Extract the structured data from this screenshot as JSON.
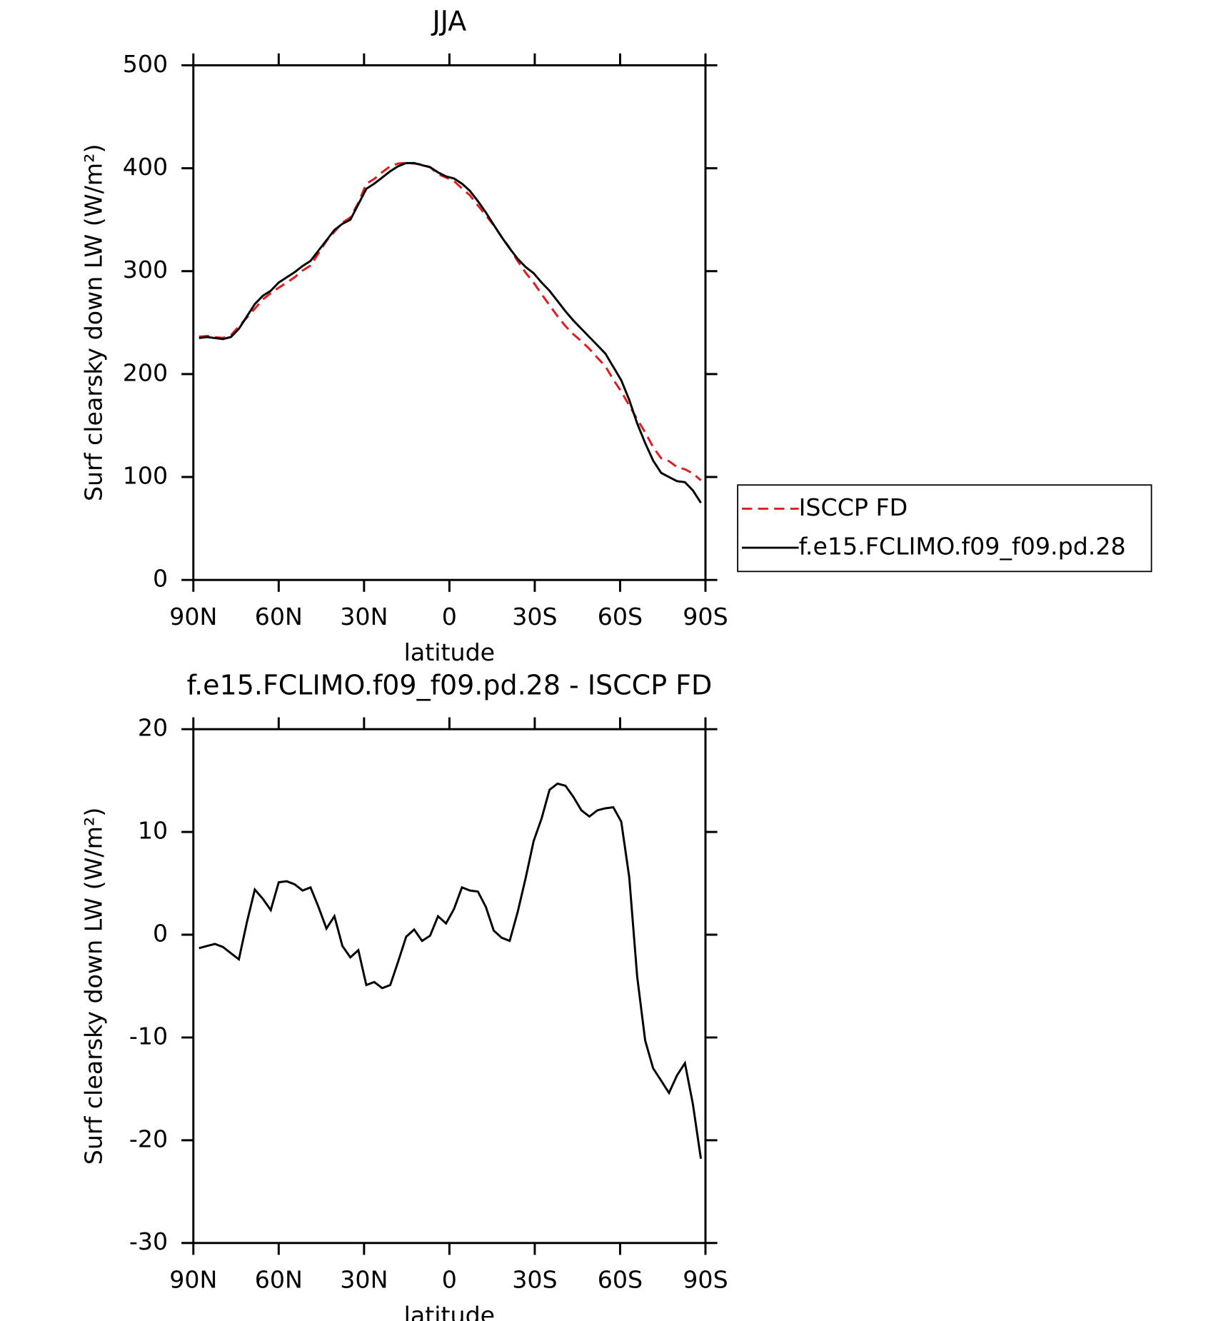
{
  "chart_data": [
    {
      "type": "line",
      "title": "JJA",
      "xlabel": "latitude",
      "ylabel": "Surf clearsky down LW (W/m²)",
      "xlim": [
        90,
        -90
      ],
      "xticks": [
        {
          "value": 90,
          "label": "90N"
        },
        {
          "value": 60,
          "label": "60N"
        },
        {
          "value": 30,
          "label": "30N"
        },
        0,
        {
          "value": -30,
          "label": "30S"
        },
        {
          "value": -60,
          "label": "60S"
        },
        {
          "value": -90,
          "label": "90S"
        }
      ],
      "ylim": [
        0,
        500
      ],
      "yticks": [
        0,
        100,
        200,
        300,
        400,
        500
      ],
      "legend": "right",
      "x": [
        88,
        85.2,
        82.4,
        79.6,
        76.8,
        74,
        71.2,
        68.4,
        65.6,
        62.8,
        60,
        57.2,
        54.4,
        51.6,
        48.8,
        46,
        43.2,
        40.4,
        37.6,
        34.8,
        32,
        29.2,
        26.4,
        23.6,
        20.8,
        18,
        15.2,
        12.4,
        9.6,
        6.8,
        4,
        1.2,
        -1.6,
        -4.4,
        -7.2,
        -10,
        -12.8,
        -15.6,
        -18.4,
        -21.2,
        -24,
        -26.8,
        -29.6,
        -32.4,
        -35.2,
        -38,
        -40.8,
        -43.6,
        -46.4,
        -49.2,
        -52,
        -54.8,
        -57.6,
        -60.4,
        -63.2,
        -66,
        -68.8,
        -71.6,
        -74.4,
        -77.2,
        -80,
        -82.8,
        -85.6,
        -88.4
      ],
      "series": [
        {
          "name": "ISCCP FD",
          "color": "#e41a1c",
          "dash": true,
          "values": [
            236.3,
            237.1,
            235.9,
            235.2,
            237.8,
            246.4,
            254.8,
            263.6,
            272.5,
            278.6,
            283.9,
            288.8,
            294.1,
            300.7,
            305.4,
            317.3,
            329.4,
            338.2,
            347.1,
            352.2,
            366.5,
            384.9,
            389.6,
            396.2,
            401.9,
            404.6,
            405.2,
            404.5,
            403.6,
            401.1,
            394.2,
            390.9,
            387.5,
            380.4,
            373.7,
            363.8,
            354.3,
            344.6,
            333.3,
            322.6,
            309.8,
            298.5,
            288.9,
            277.7,
            266.9,
            256.3,
            246.5,
            238.6,
            231.9,
            224.5,
            215.9,
            207.7,
            194.6,
            183.0,
            169.4,
            156.1,
            143.3,
            129.0,
            118.2,
            115.4,
            109.7,
            107.5,
            103.5,
            96.8
          ]
        },
        {
          "name": "f.e15.FCLIMO.f09_f09.pd.28",
          "color": "#000000",
          "dash": false,
          "values": [
            235,
            236,
            235,
            234,
            236,
            244,
            256,
            268,
            276,
            281,
            289,
            294,
            299,
            305,
            310,
            320,
            330,
            340,
            346,
            350,
            365,
            380,
            385,
            391,
            397,
            402,
            405,
            405,
            403,
            401,
            396,
            392,
            390,
            385,
            378,
            368,
            357,
            345,
            333,
            322,
            312,
            304,
            298,
            289,
            281,
            271,
            261,
            252,
            244,
            236,
            228,
            220,
            207,
            194,
            175,
            152,
            133,
            116,
            104,
            100,
            96,
            95,
            87,
            75
          ]
        }
      ]
    },
    {
      "type": "line",
      "title": "f.e15.FCLIMO.f09_f09.pd.28 - ISCCP FD",
      "xlabel": "latitude",
      "ylabel": "Surf clearsky down LW (W/m²)",
      "xlim": [
        90,
        -90
      ],
      "xticks": [
        {
          "value": 90,
          "label": "90N"
        },
        {
          "value": 60,
          "label": "60N"
        },
        {
          "value": 30,
          "label": "30N"
        },
        0,
        {
          "value": -30,
          "label": "30S"
        },
        {
          "value": -60,
          "label": "60S"
        },
        {
          "value": -90,
          "label": "90S"
        }
      ],
      "ylim": [
        -30,
        20
      ],
      "yticks": [
        -30,
        -20,
        -10,
        0,
        10,
        20
      ],
      "x": [
        88,
        85.2,
        82.4,
        79.6,
        76.8,
        74,
        71.2,
        68.4,
        65.6,
        62.8,
        60,
        57.2,
        54.4,
        51.6,
        48.8,
        46,
        43.2,
        40.4,
        37.6,
        34.8,
        32,
        29.2,
        26.4,
        23.6,
        20.8,
        18,
        15.2,
        12.4,
        9.6,
        6.8,
        4,
        1.2,
        -1.6,
        -4.4,
        -7.2,
        -10,
        -12.8,
        -15.6,
        -18.4,
        -21.2,
        -24,
        -26.8,
        -29.6,
        -32.4,
        -35.2,
        -38,
        -40.8,
        -43.6,
        -46.4,
        -49.2,
        -52,
        -54.8,
        -57.6,
        -60.4,
        -63.2,
        -66,
        -68.8,
        -71.6,
        -74.4,
        -77.2,
        -80,
        -82.8,
        -85.6,
        -88.4
      ],
      "series": [
        {
          "color": "#000000",
          "dash": false,
          "values": [
            -1.3,
            -1.1,
            -0.9,
            -1.2,
            -1.8,
            -2.4,
            1.2,
            4.4,
            3.5,
            2.4,
            5.1,
            5.2,
            4.9,
            4.3,
            4.6,
            2.7,
            0.6,
            1.8,
            -1.1,
            -2.2,
            -1.5,
            -4.9,
            -4.6,
            -5.2,
            -4.9,
            -2.6,
            -0.2,
            0.5,
            -0.6,
            -0.1,
            1.8,
            1.1,
            2.5,
            4.6,
            4.3,
            4.2,
            2.7,
            0.4,
            -0.3,
            -0.6,
            2.2,
            5.5,
            9.1,
            11.3,
            14.1,
            14.7,
            14.5,
            13.4,
            12.1,
            11.5,
            12.1,
            12.3,
            12.4,
            11.0,
            5.6,
            -4.1,
            -10.3,
            -13.0,
            -14.2,
            -15.4,
            -13.7,
            -12.5,
            -16.5,
            -21.8
          ]
        }
      ]
    }
  ]
}
